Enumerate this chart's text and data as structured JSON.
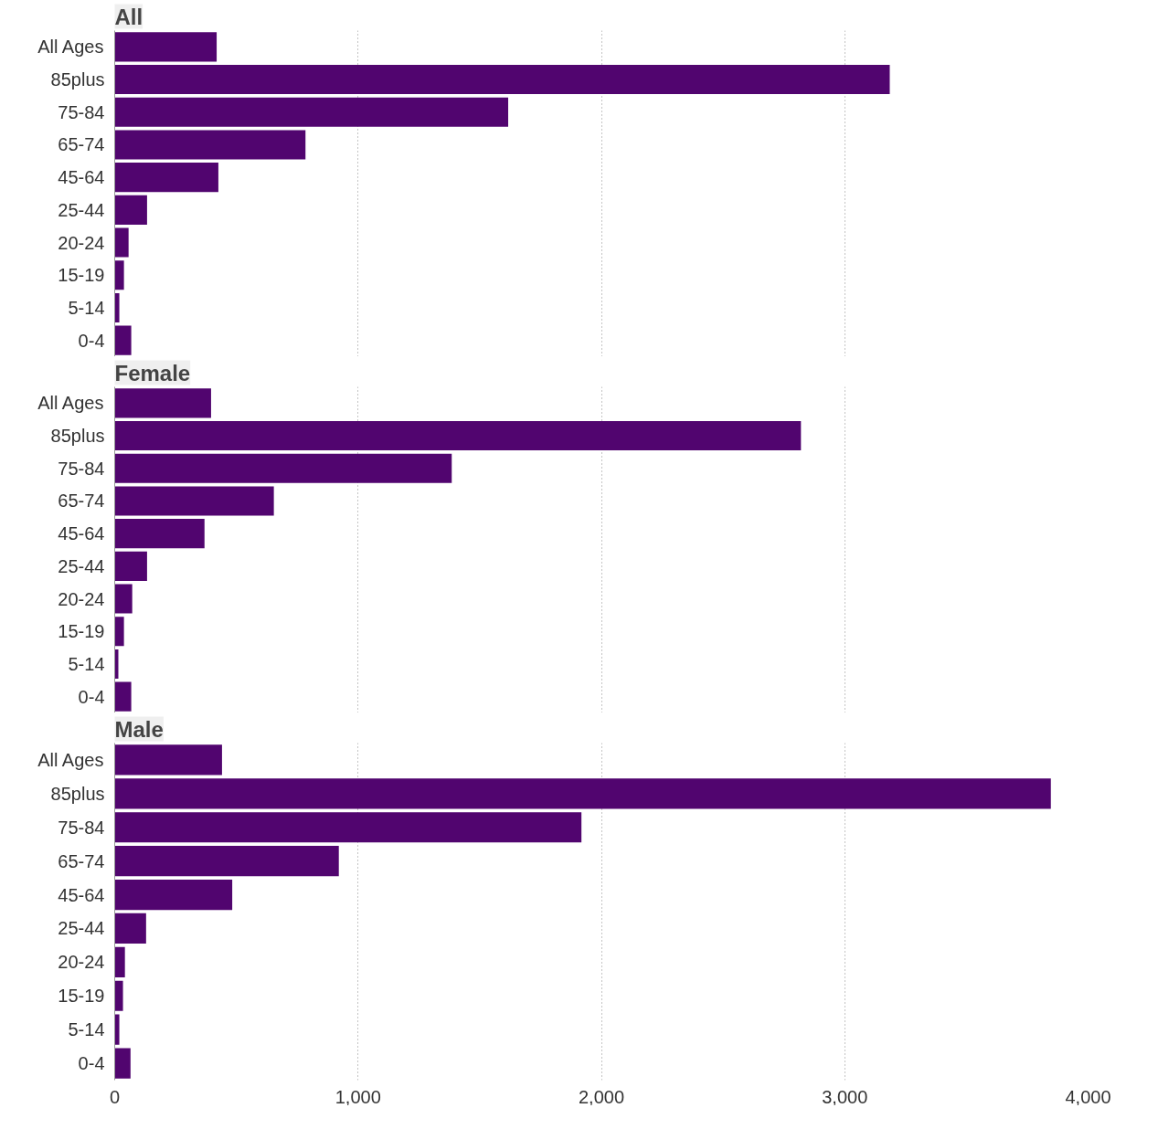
{
  "chart_data": [
    {
      "type": "bar",
      "orientation": "horizontal",
      "title": "All",
      "categories": [
        "All Ages",
        "85plus",
        "75-84",
        "65-74",
        "45-64",
        "25-44",
        "20-24",
        "15-19",
        "5-14",
        "0-4"
      ],
      "color": "#51056f",
      "values": [
        419,
        3185,
        1617,
        784,
        426,
        133,
        57,
        38,
        19,
        68
      ],
      "xlim": [
        0,
        4000
      ],
      "xticks": [
        1000,
        2000,
        3000,
        4000
      ],
      "grid": "x",
      "tick_labels": "y"
    },
    {
      "type": "bar",
      "orientation": "horizontal",
      "title": "Female",
      "categories": [
        "All Ages",
        "85plus",
        "75-84",
        "65-74",
        "45-64",
        "25-44",
        "20-24",
        "15-19",
        "5-14",
        "0-4"
      ],
      "color": "#51056f",
      "values": [
        396,
        2820,
        1385,
        654,
        369,
        133,
        72,
        38,
        15,
        68
      ],
      "xlim": [
        0,
        4000
      ],
      "xticks": [
        1000,
        2000,
        3000,
        4000
      ],
      "grid": "x",
      "tick_labels": "y"
    },
    {
      "type": "bar",
      "orientation": "horizontal",
      "title": "Male",
      "categories": [
        "All Ages",
        "85plus",
        "75-84",
        "65-74",
        "45-64",
        "25-44",
        "20-24",
        "15-19",
        "5-14",
        "0-4"
      ],
      "color": "#51056f",
      "values": [
        441,
        3847,
        1918,
        921,
        483,
        129,
        42,
        34,
        19,
        65
      ],
      "xlim": [
        0,
        4000
      ],
      "xticks": [
        0,
        {
          "value": 1000,
          "label": "1,000"
        },
        {
          "value": 2000,
          "label": "2,000"
        },
        {
          "value": 3000,
          "label": "3,000"
        },
        {
          "value": 4000,
          "label": "4,000"
        }
      ],
      "grid": "x"
    }
  ]
}
